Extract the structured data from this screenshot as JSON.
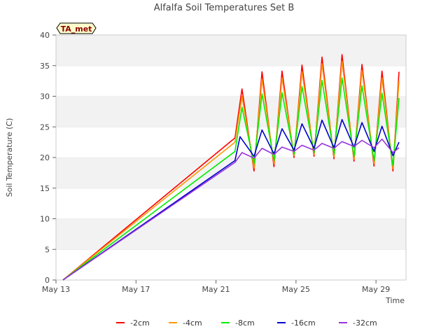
{
  "chart_data": {
    "type": "line",
    "title": "Alfalfa Soil Temperatures Set B",
    "xlabel": "Time",
    "ylabel": "Soil Temperature (C)",
    "badge": "TA_met",
    "xlim": [
      0,
      17.5
    ],
    "ylim": [
      0,
      40
    ],
    "x_units": "days since May 13",
    "x_ticks": [
      {
        "x": 0,
        "label": "May 13"
      },
      {
        "x": 4,
        "label": "May 17"
      },
      {
        "x": 8,
        "label": "May 21"
      },
      {
        "x": 12,
        "label": "May 25"
      },
      {
        "x": 16,
        "label": "May 29"
      }
    ],
    "y_ticks": [
      0,
      5,
      10,
      15,
      20,
      25,
      30,
      35,
      40
    ],
    "grid": "horizontal bands",
    "legend_position": "bottom",
    "series": [
      {
        "name": "-2cm",
        "color": "#ff0000",
        "points": [
          [
            0.35,
            0
          ],
          [
            8.95,
            23.2
          ],
          [
            9.3,
            31.2
          ],
          [
            9.9,
            17.8
          ],
          [
            10.3,
            34
          ],
          [
            10.9,
            18.5
          ],
          [
            11.3,
            34.1
          ],
          [
            11.9,
            20
          ],
          [
            12.3,
            35.1
          ],
          [
            12.9,
            20.2
          ],
          [
            13.3,
            36.4
          ],
          [
            13.9,
            19.8
          ],
          [
            14.3,
            36.8
          ],
          [
            14.9,
            19.4
          ],
          [
            15.3,
            35.2
          ],
          [
            15.9,
            18.6
          ],
          [
            16.3,
            34.1
          ],
          [
            16.85,
            17.8
          ],
          [
            17.15,
            34
          ]
        ]
      },
      {
        "name": "-4cm",
        "color": "#ff9900",
        "points": [
          [
            0.35,
            0
          ],
          [
            8.95,
            22.5
          ],
          [
            9.3,
            30
          ],
          [
            9.9,
            18.3
          ],
          [
            10.3,
            32.8
          ],
          [
            10.9,
            19
          ],
          [
            11.3,
            33
          ],
          [
            11.9,
            20.3
          ],
          [
            12.3,
            34
          ],
          [
            12.9,
            20.5
          ],
          [
            13.3,
            35.3
          ],
          [
            13.9,
            20.1
          ],
          [
            14.3,
            35.7
          ],
          [
            14.9,
            19.7
          ],
          [
            15.3,
            34.2
          ],
          [
            15.9,
            19
          ],
          [
            16.3,
            33
          ],
          [
            16.85,
            18.2
          ],
          [
            17.15,
            32.5
          ]
        ]
      },
      {
        "name": "-8cm",
        "color": "#00ee00",
        "points": [
          [
            0.35,
            0
          ],
          [
            8.95,
            21
          ],
          [
            9.3,
            28.2
          ],
          [
            9.9,
            19
          ],
          [
            10.3,
            30.4
          ],
          [
            10.9,
            19.5
          ],
          [
            11.3,
            30.6
          ],
          [
            11.9,
            20.5
          ],
          [
            12.3,
            31.6
          ],
          [
            12.9,
            20.8
          ],
          [
            13.3,
            32.6
          ],
          [
            13.9,
            20.5
          ],
          [
            14.3,
            33
          ],
          [
            14.9,
            20.2
          ],
          [
            15.3,
            31.7
          ],
          [
            15.9,
            19.5
          ],
          [
            16.3,
            30.5
          ],
          [
            16.85,
            18.7
          ],
          [
            17.15,
            29.7
          ]
        ]
      },
      {
        "name": "-16cm",
        "color": "#0000cc",
        "points": [
          [
            0.35,
            0
          ],
          [
            8.95,
            19.5
          ],
          [
            9.2,
            23.4
          ],
          [
            9.9,
            20.2
          ],
          [
            10.3,
            24.5
          ],
          [
            10.9,
            20.6
          ],
          [
            11.3,
            24.7
          ],
          [
            11.9,
            21.2
          ],
          [
            12.3,
            25.5
          ],
          [
            12.9,
            21.5
          ],
          [
            13.3,
            26.1
          ],
          [
            13.9,
            21.6
          ],
          [
            14.3,
            26.2
          ],
          [
            14.9,
            21.7
          ],
          [
            15.3,
            25.7
          ],
          [
            15.9,
            21
          ],
          [
            16.3,
            25.1
          ],
          [
            16.85,
            20.3
          ],
          [
            17.15,
            22.5
          ]
        ]
      },
      {
        "name": "-32cm",
        "color": "#9933dd",
        "points": [
          [
            0.35,
            0
          ],
          [
            8.95,
            19.2
          ],
          [
            9.3,
            20.8
          ],
          [
            9.9,
            19.9
          ],
          [
            10.3,
            21.5
          ],
          [
            10.9,
            20.5
          ],
          [
            11.3,
            21.7
          ],
          [
            11.9,
            21
          ],
          [
            12.3,
            22
          ],
          [
            12.9,
            21.2
          ],
          [
            13.3,
            22.3
          ],
          [
            13.9,
            21.5
          ],
          [
            14.3,
            22.6
          ],
          [
            14.9,
            21.8
          ],
          [
            15.3,
            22.8
          ],
          [
            15.9,
            21.6
          ],
          [
            16.3,
            23
          ],
          [
            16.85,
            20.8
          ],
          [
            17.15,
            21.6
          ]
        ]
      }
    ]
  }
}
